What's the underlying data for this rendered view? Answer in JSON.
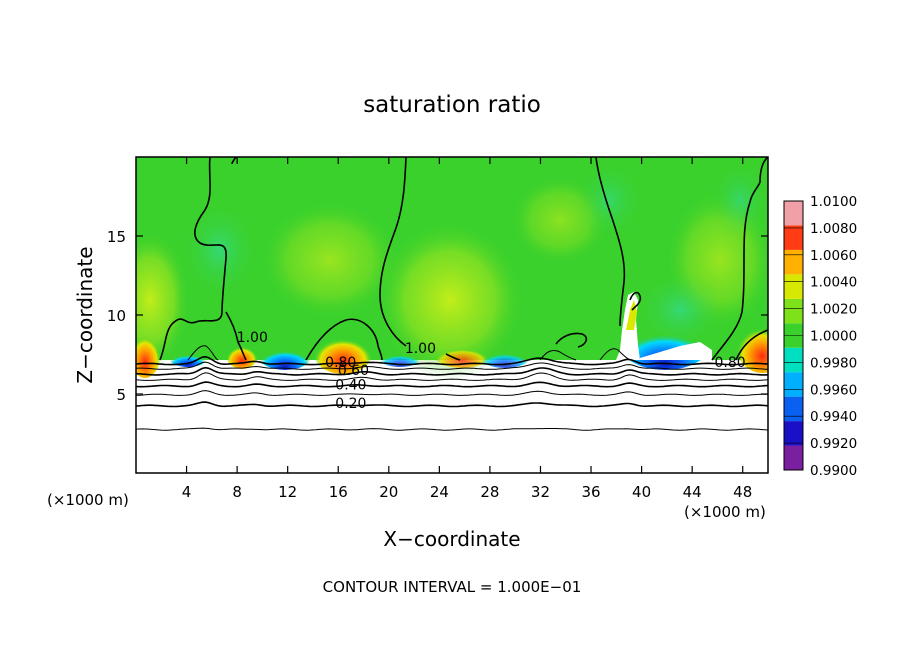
{
  "chart_data": {
    "type": "heatmap",
    "title": "saturation ratio",
    "xlabel": "X−coordinate",
    "ylabel": "Z−coordinate",
    "x_unit_left": "(×1000 m)",
    "x_unit_right": "(×1000 m)",
    "footer": "CONTOUR INTERVAL = 1.000E−01",
    "xlim": [
      0,
      50
    ],
    "ylim": [
      0,
      20
    ],
    "x_ticks": [
      4,
      8,
      12,
      16,
      20,
      24,
      28,
      32,
      36,
      40,
      44,
      48
    ],
    "y_ticks": [
      5,
      10,
      15
    ],
    "colorbar": {
      "levels": [
        "0.9900",
        "0.9920",
        "0.9940",
        "0.9960",
        "0.9980",
        "1.0000",
        "1.0020",
        "1.0040",
        "1.0060",
        "1.0080",
        "1.0100"
      ],
      "colors": [
        "#7a1fa0",
        "#1a10c8",
        "#0a60f0",
        "#00b0ff",
        "#00e0c0",
        "#3ad12c",
        "#7ee21a",
        "#d8e800",
        "#ffb000",
        "#ff3c14",
        "#f2a0a8"
      ]
    },
    "contour_labels": [
      {
        "text": "1.00",
        "x": 9.2,
        "y": 8.3
      },
      {
        "text": "1.00",
        "x": 22.5,
        "y": 7.6
      },
      {
        "text": "0.80",
        "x": 16.2,
        "y": 6.7
      },
      {
        "text": "0.60",
        "x": 17.2,
        "y": 6.2
      },
      {
        "text": "0.40",
        "x": 17.0,
        "y": 5.3
      },
      {
        "text": "0.20",
        "x": 17.0,
        "y": 4.1
      },
      {
        "text": "0.80",
        "x": 47.0,
        "y": 6.7
      }
    ],
    "stratified_levels": [
      {
        "level": "0.80",
        "z": 6.9
      },
      {
        "level": "0.70",
        "z": 6.6
      },
      {
        "level": "0.60",
        "z": 6.25
      },
      {
        "level": "0.50",
        "z": 5.9
      },
      {
        "level": "0.40",
        "z": 5.5
      },
      {
        "level": "0.30",
        "z": 4.95
      },
      {
        "level": "0.20",
        "z": 4.25
      },
      {
        "level": "0.10",
        "z": 2.75
      }
    ]
  }
}
